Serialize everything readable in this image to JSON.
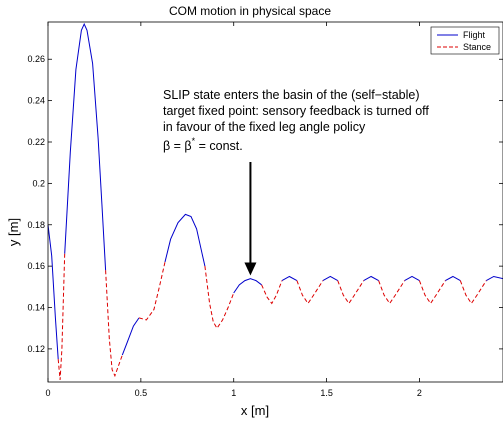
{
  "chart_data": {
    "type": "line",
    "title": "COM motion in physical space",
    "xlabel": "x [m]",
    "ylabel": "y [m]",
    "xlim": [
      0,
      2.45
    ],
    "ylim": [
      0.104,
      0.278
    ],
    "x_ticks": [
      0,
      0.5,
      1,
      1.5,
      2
    ],
    "x_tick_labels": [
      "0",
      "0.5",
      "1",
      "1.5",
      "2"
    ],
    "y_ticks": [
      0.12,
      0.14,
      0.16,
      0.18,
      0.2,
      0.22,
      0.24,
      0.26
    ],
    "y_tick_labels": [
      "0.12",
      "0.14",
      "0.16",
      "0.18",
      "0.2",
      "0.22",
      "0.24",
      "0.26"
    ],
    "grid": false,
    "legend_position": "top-right",
    "series": [
      {
        "name": "Flight",
        "color": "#0000cc",
        "style": "solid",
        "segments": [
          [
            [
              0.0,
              0.18
            ],
            [
              0.02,
              0.165
            ],
            [
              0.04,
              0.135
            ],
            [
              0.055,
              0.115
            ]
          ],
          [
            [
              0.09,
              0.166
            ],
            [
              0.12,
              0.215
            ],
            [
              0.15,
              0.255
            ],
            [
              0.18,
              0.274
            ],
            [
              0.195,
              0.277
            ],
            [
              0.21,
              0.274
            ],
            [
              0.24,
              0.258
            ],
            [
              0.27,
              0.222
            ],
            [
              0.29,
              0.19
            ],
            [
              0.31,
              0.158
            ]
          ],
          [
            [
              0.4,
              0.117
            ],
            [
              0.43,
              0.124
            ],
            [
              0.46,
              0.131
            ],
            [
              0.49,
              0.135
            ]
          ],
          [
            [
              0.63,
              0.162
            ],
            [
              0.66,
              0.173
            ],
            [
              0.7,
              0.181
            ],
            [
              0.74,
              0.185
            ],
            [
              0.77,
              0.184
            ],
            [
              0.8,
              0.178
            ],
            [
              0.83,
              0.166
            ],
            [
              0.845,
              0.16
            ]
          ],
          [
            [
              1.0,
              0.147
            ],
            [
              1.03,
              0.151
            ],
            [
              1.06,
              0.153
            ],
            [
              1.09,
              0.154
            ],
            [
              1.12,
              0.153
            ],
            [
              1.15,
              0.151
            ]
          ],
          [
            [
              1.26,
              0.153
            ],
            [
              1.3,
              0.155
            ],
            [
              1.34,
              0.153
            ]
          ],
          [
            [
              1.48,
              0.153
            ],
            [
              1.52,
              0.155
            ],
            [
              1.56,
              0.153
            ]
          ],
          [
            [
              1.7,
              0.153
            ],
            [
              1.74,
              0.155
            ],
            [
              1.78,
              0.153
            ]
          ],
          [
            [
              1.92,
              0.153
            ],
            [
              1.96,
              0.155
            ],
            [
              2.0,
              0.153
            ]
          ],
          [
            [
              2.14,
              0.153
            ],
            [
              2.18,
              0.155
            ],
            [
              2.22,
              0.153
            ]
          ],
          [
            [
              2.36,
              0.153
            ],
            [
              2.4,
              0.155
            ],
            [
              2.45,
              0.154
            ]
          ]
        ]
      },
      {
        "name": "Stance",
        "color": "#dd0000",
        "style": "dashed",
        "segments": [
          [
            [
              0.055,
              0.115
            ],
            [
              0.065,
              0.105
            ],
            [
              0.075,
              0.12
            ],
            [
              0.09,
              0.166
            ]
          ],
          [
            [
              0.31,
              0.158
            ],
            [
              0.33,
              0.125
            ],
            [
              0.345,
              0.11
            ],
            [
              0.36,
              0.107
            ],
            [
              0.38,
              0.112
            ],
            [
              0.4,
              0.117
            ]
          ],
          [
            [
              0.49,
              0.135
            ],
            [
              0.53,
              0.134
            ],
            [
              0.57,
              0.139
            ],
            [
              0.6,
              0.15
            ],
            [
              0.63,
              0.162
            ]
          ],
          [
            [
              0.845,
              0.16
            ],
            [
              0.87,
              0.142
            ],
            [
              0.89,
              0.133
            ],
            [
              0.91,
              0.13
            ],
            [
              0.94,
              0.134
            ],
            [
              0.97,
              0.14
            ],
            [
              1.0,
              0.147
            ]
          ],
          [
            [
              1.15,
              0.151
            ],
            [
              1.18,
              0.145
            ],
            [
              1.205,
              0.142
            ],
            [
              1.23,
              0.146
            ],
            [
              1.26,
              0.153
            ]
          ],
          [
            [
              1.34,
              0.153
            ],
            [
              1.37,
              0.146
            ],
            [
              1.4,
              0.142
            ],
            [
              1.43,
              0.146
            ],
            [
              1.48,
              0.153
            ]
          ],
          [
            [
              1.56,
              0.153
            ],
            [
              1.59,
              0.146
            ],
            [
              1.62,
              0.142
            ],
            [
              1.65,
              0.146
            ],
            [
              1.7,
              0.153
            ]
          ],
          [
            [
              1.78,
              0.153
            ],
            [
              1.81,
              0.146
            ],
            [
              1.84,
              0.142
            ],
            [
              1.87,
              0.146
            ],
            [
              1.92,
              0.153
            ]
          ],
          [
            [
              2.0,
              0.153
            ],
            [
              2.03,
              0.146
            ],
            [
              2.06,
              0.142
            ],
            [
              2.09,
              0.146
            ],
            [
              2.14,
              0.153
            ]
          ],
          [
            [
              2.22,
              0.153
            ],
            [
              2.25,
              0.146
            ],
            [
              2.28,
              0.142
            ],
            [
              2.31,
              0.146
            ],
            [
              2.36,
              0.153
            ]
          ]
        ]
      }
    ],
    "annotation": {
      "lines": [
        "SLIP state enters the basin of the (self−stable)",
        "target fixed point: sensory feedback is turned off",
        "in favour of the fixed leg angle policy"
      ],
      "formula_lhs": "β = β",
      "formula_sup": "*",
      "formula_rhs": " = const.",
      "arrow_target": [
        1.09,
        0.154
      ]
    }
  }
}
